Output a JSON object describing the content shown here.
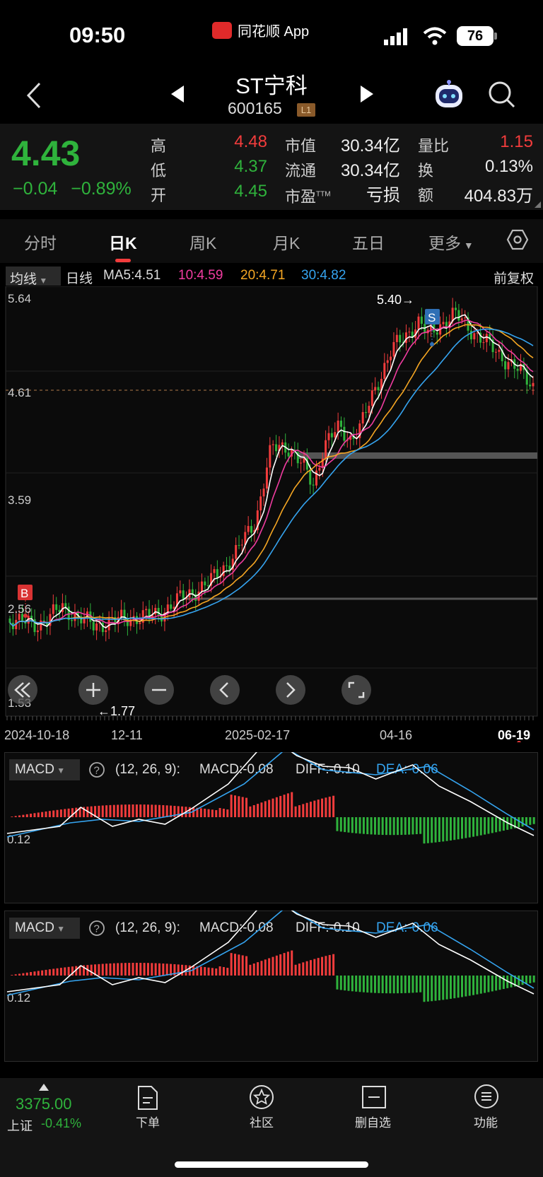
{
  "status_bar": {
    "time": "09:50",
    "app_name": "同花顺 App",
    "battery": "76"
  },
  "header": {
    "stock_name": "ST宁科",
    "stock_code": "600165",
    "level_badge": "L1"
  },
  "quote": {
    "price": "4.43",
    "change": "−0.04",
    "change_pct": "−0.89%",
    "high_label": "高",
    "high": "4.48",
    "low_label": "低",
    "low": "4.37",
    "open_label": "开",
    "open": "4.45",
    "mktcap_label": "市值",
    "mktcap": "30.34亿",
    "float_label": "流通",
    "float_cap": "30.34亿",
    "pe_label": "市盈",
    "pe_sup": "TTM",
    "pe": "亏损",
    "volratio_label": "量比",
    "volratio": "1.15",
    "turnover_label": "换",
    "turnover": "0.13%",
    "amount_label": "额",
    "amount": "404.83万"
  },
  "tabs": [
    {
      "label": "分时"
    },
    {
      "label": "日K"
    },
    {
      "label": "周K"
    },
    {
      "label": "月K"
    },
    {
      "label": "五日"
    },
    {
      "label": "更多"
    }
  ],
  "ma_bar": {
    "indicator": "均线",
    "period": "日线",
    "ma5": "MA5:4.51",
    "ma10": "10:4.59",
    "ma20": "20:4.71",
    "ma30": "30:4.82",
    "adjust": "前复权"
  },
  "kchart": {
    "y_ticks": [
      "5.64",
      "4.61",
      "3.59",
      "2.56",
      "1.53"
    ],
    "high_mark": "5.40→",
    "low_mark": "←1.77",
    "buy_mark": "B",
    "sell_mark": "S",
    "x_ticks": [
      "2024-10-18",
      "12-11",
      "2025-02-17",
      "04-16",
      "06-19"
    ]
  },
  "macd_panels": [
    {
      "name": "MACD",
      "params": "(12, 26, 9):",
      "macd": "MACD:-0.08",
      "diff": "DIFF:-0.10",
      "dea": "DEA:-0.06",
      "tick": "0.12"
    },
    {
      "name": "MACD",
      "params": "(12, 26, 9):",
      "macd": "MACD:-0.08",
      "diff": "DIFF:-0.10",
      "dea": "DEA:-0.06",
      "tick": "0.12"
    }
  ],
  "bottom_bar": {
    "index_value": "3375.00",
    "index_name": "上证",
    "index_change": "-0.41%",
    "items": [
      {
        "label": "下单"
      },
      {
        "label": "社区"
      },
      {
        "label": "删自选"
      },
      {
        "label": "功能"
      }
    ]
  },
  "colors": {
    "up": "#f23c3c",
    "down": "#2fb33c",
    "ma5": "#ffffff",
    "ma10": "#f03ca0",
    "ma20": "#f5a623",
    "ma30": "#35a4f0"
  }
}
